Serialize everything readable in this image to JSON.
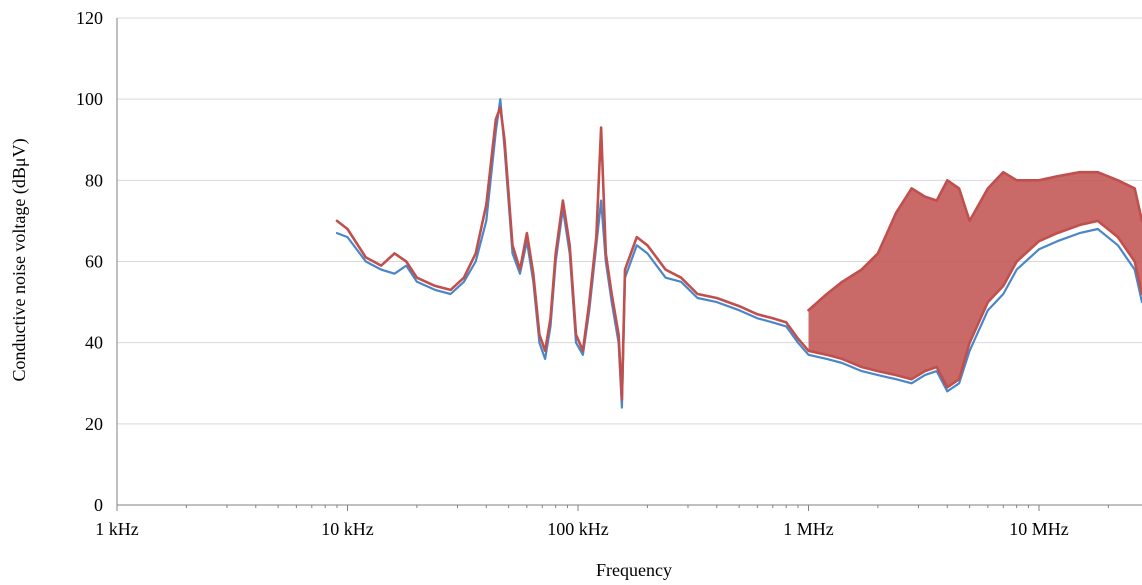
{
  "chart_data": {
    "type": "line",
    "title": "",
    "xlabel": "Frequency",
    "ylabel": "Conductive noise voltage (dBμV)",
    "x_scale": "log",
    "xlim": [
      1000,
      30000000
    ],
    "ylim": [
      0,
      120
    ],
    "y_ticks": [
      0,
      20,
      40,
      60,
      80,
      100,
      120
    ],
    "x_ticks": [
      {
        "value": 1000,
        "label": "1 kHz"
      },
      {
        "value": 10000,
        "label": "10 kHz"
      },
      {
        "value": 100000,
        "label": "100 kHz"
      },
      {
        "value": 1000000,
        "label": "1 MHz"
      },
      {
        "value": 10000000,
        "label": "10 MHz"
      }
    ],
    "grid": true,
    "legend": "none",
    "series": [
      {
        "color": "#4a86c8",
        "x": [
          9000,
          10000,
          12000,
          14000,
          16000,
          18000,
          20000,
          24000,
          28000,
          32000,
          36000,
          40000,
          44000,
          46000,
          48000,
          52000,
          56000,
          60000,
          64000,
          68000,
          72000,
          76000,
          80000,
          86000,
          92000,
          98000,
          105000,
          112000,
          120000,
          126000,
          132000,
          140000,
          150000,
          155000,
          160000,
          180000,
          200000,
          240000,
          280000,
          330000,
          400000,
          500000,
          600000,
          700000,
          800000,
          900000,
          1000000,
          1200000,
          1400000,
          1700000,
          2000000,
          2400000,
          2800000,
          3200000,
          3600000,
          4000000,
          4500000,
          5000000,
          6000000,
          7000000,
          8000000,
          10000000,
          12000000,
          15000000,
          18000000,
          22000000,
          26000000,
          30000000
        ],
        "y": [
          67,
          66,
          60,
          58,
          57,
          59,
          55,
          53,
          52,
          55,
          60,
          70,
          92,
          100,
          88,
          62,
          57,
          65,
          55,
          40,
          36,
          44,
          60,
          73,
          62,
          40,
          37,
          48,
          64,
          75,
          60,
          50,
          40,
          24,
          56,
          64,
          62,
          56,
          55,
          51,
          50,
          48,
          46,
          45,
          44,
          40,
          37,
          36,
          35,
          33,
          32,
          31,
          30,
          32,
          33,
          28,
          30,
          38,
          48,
          52,
          58,
          63,
          65,
          67,
          68,
          64,
          58,
          50
        ]
      },
      {
        "color": "#c0504d",
        "x": [
          9000,
          10000,
          12000,
          14000,
          16000,
          18000,
          20000,
          24000,
          28000,
          32000,
          36000,
          40000,
          44000,
          46000,
          48000,
          52000,
          56000,
          60000,
          64000,
          68000,
          72000,
          76000,
          80000,
          86000,
          92000,
          98000,
          105000,
          112000,
          120000,
          126000,
          132000,
          140000,
          150000,
          155000,
          160000,
          180000,
          200000,
          240000,
          280000,
          330000,
          400000,
          500000,
          600000,
          700000,
          800000,
          900000,
          1000000,
          1200000,
          1400000,
          1700000,
          2000000,
          2400000,
          2800000,
          3200000,
          3600000,
          4000000,
          4500000,
          5000000,
          6000000,
          7000000,
          8000000,
          10000000,
          12000000,
          15000000,
          18000000,
          22000000,
          26000000,
          30000000
        ],
        "y": [
          70,
          68,
          61,
          59,
          62,
          60,
          56,
          54,
          53,
          56,
          62,
          74,
          95,
          98,
          90,
          64,
          58,
          67,
          57,
          42,
          38,
          46,
          62,
          75,
          64,
          42,
          38,
          50,
          66,
          93,
          62,
          52,
          42,
          26,
          58,
          66,
          64,
          58,
          56,
          52,
          51,
          49,
          47,
          46,
          45,
          41,
          38,
          37,
          36,
          34,
          33,
          32,
          31,
          33,
          34,
          29,
          31,
          40,
          50,
          54,
          60,
          65,
          67,
          69,
          70,
          66,
          60,
          52
        ]
      },
      {
        "color": "#c0504d",
        "x": [
          1000000,
          1200000,
          1400000,
          1700000,
          2000000,
          2400000,
          2800000,
          3200000,
          3600000,
          4000000,
          4500000,
          5000000,
          6000000,
          7000000,
          8000000,
          10000000,
          12000000,
          15000000,
          18000000,
          22000000,
          26000000,
          30000000
        ],
        "y": [
          48,
          52,
          55,
          58,
          62,
          72,
          78,
          76,
          75,
          80,
          78,
          70,
          78,
          82,
          80,
          80,
          81,
          82,
          82,
          80,
          78,
          70
        ]
      }
    ]
  }
}
